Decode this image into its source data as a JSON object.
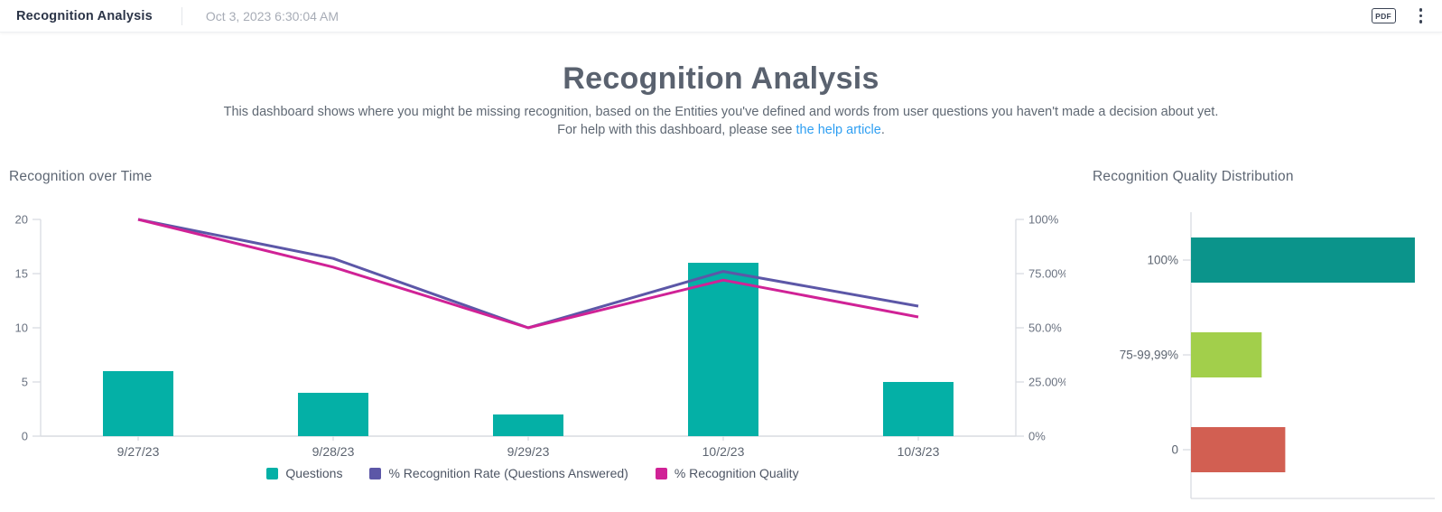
{
  "topbar": {
    "title": "Recognition Analysis",
    "timestamp": "Oct 3, 2023 6:30:04 AM",
    "pdf_label": "PDF"
  },
  "header": {
    "title": "Recognition Analysis",
    "description_line1": "This dashboard shows where you might be missing recognition, based on the Entities you've defined and words from user questions you haven't made a decision about yet.",
    "description_line2_prefix": "For help with this dashboard, please see ",
    "help_link_text": "the help article",
    "description_line2_suffix": "."
  },
  "colors": {
    "bar_teal": "#04b0a6",
    "line_purple": "#5c57a7",
    "line_magenta": "#d02296",
    "dist_teal": "#0b948b",
    "dist_green": "#a2cf4b",
    "dist_red": "#d25f52",
    "axis": "#d9dce1",
    "link_blue": "#2f9ff2"
  },
  "chart_data": [
    {
      "id": "recognition-over-time",
      "type": "combo-bar-line",
      "title": "Recognition over Time",
      "categories": [
        "9/27/23",
        "9/28/23",
        "9/29/23",
        "10/2/23",
        "10/3/23"
      ],
      "bar_series": {
        "name": "Questions",
        "axis": "left",
        "color": "#04b0a6",
        "values": [
          6,
          4,
          2,
          16,
          5
        ]
      },
      "line_series": [
        {
          "name": "% Recognition Rate (Questions Answered)",
          "axis": "right",
          "color": "#5c57a7",
          "values": [
            100,
            82,
            50,
            76,
            60
          ]
        },
        {
          "name": "% Recognition Quality",
          "axis": "right",
          "color": "#d02296",
          "values": [
            100,
            78,
            50,
            72,
            55
          ]
        }
      ],
      "left_axis": {
        "min": 0,
        "max": 20,
        "tick_labels": [
          "20",
          "15",
          "10",
          "5",
          "0"
        ],
        "tick_values": [
          20,
          15,
          10,
          5,
          0
        ]
      },
      "right_axis": {
        "min": 0,
        "max": 100,
        "tick_labels": [
          "100%",
          "75.00%",
          "50.0%",
          "25.00%",
          "0%"
        ],
        "tick_values": [
          100,
          75,
          50,
          25,
          0
        ]
      },
      "legend": [
        {
          "label": "Questions",
          "color": "#04b0a6"
        },
        {
          "label": "% Recognition Rate (Questions Answered)",
          "color": "#5c57a7"
        },
        {
          "label": "% Recognition Quality",
          "color": "#d02296"
        }
      ],
      "grid": false,
      "legend_position": "bottom"
    },
    {
      "id": "recognition-quality-distribution",
      "type": "bar",
      "orientation": "horizontal",
      "title": "Recognition Quality Distribution",
      "categories": [
        "100%",
        "75-99,99%",
        "0"
      ],
      "values": [
        19,
        6,
        8
      ],
      "bar_colors": [
        "#0b948b",
        "#a2cf4b",
        "#d25f52"
      ],
      "xlim": [
        0,
        20
      ],
      "grid": false
    }
  ]
}
